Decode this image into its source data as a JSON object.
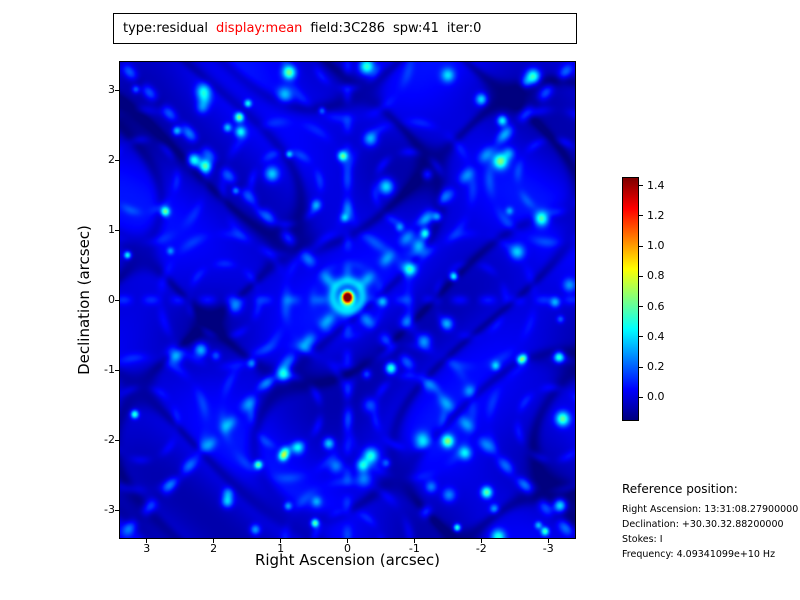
{
  "title_box": {
    "segments": [
      {
        "text": "type:residual",
        "color": "#000000"
      },
      {
        "text": "display:mean",
        "color": "#ff0000"
      },
      {
        "text": "field:3C286",
        "color": "#000000"
      },
      {
        "text": "spw:41",
        "color": "#000000"
      },
      {
        "text": "iter:0",
        "color": "#000000"
      }
    ]
  },
  "chart_data": {
    "type": "heatmap",
    "xlabel": "Right Ascension (arcsec)",
    "ylabel": "Declination (arcsec)",
    "x_range": [
      3.4,
      -3.4
    ],
    "y_range": [
      -3.4,
      3.4
    ],
    "x_ticks": [
      "3",
      "2",
      "1",
      "0",
      "-1",
      "-2",
      "-3"
    ],
    "y_ticks": [
      "3",
      "2",
      "1",
      "0",
      "-1",
      "-2",
      "-3"
    ],
    "colormap": "jet",
    "value_min": -0.15,
    "value_max": 1.45,
    "colorbar_ticks": [
      "1.4",
      "1.2",
      "1.0",
      "0.8",
      "0.6",
      "0.4",
      "0.2",
      "0.0"
    ],
    "peak": {
      "ra_arcsec": 0.0,
      "dec_arcsec": 0.05,
      "value": 1.45
    },
    "background_level": 0.0,
    "description": "Interferometric residual image: dark blue noise background with cyan sidelobe speckles along diagonal rays, ring/grating patterns, and a bright compact red source at the field center."
  },
  "reference": {
    "title": "Reference position:",
    "lines": [
      "Right Ascension: 13:31:08.27900000",
      "Declination: +30.30.32.88200000",
      "Stokes: I",
      "Frequency: 4.09341099e+10 Hz"
    ]
  }
}
